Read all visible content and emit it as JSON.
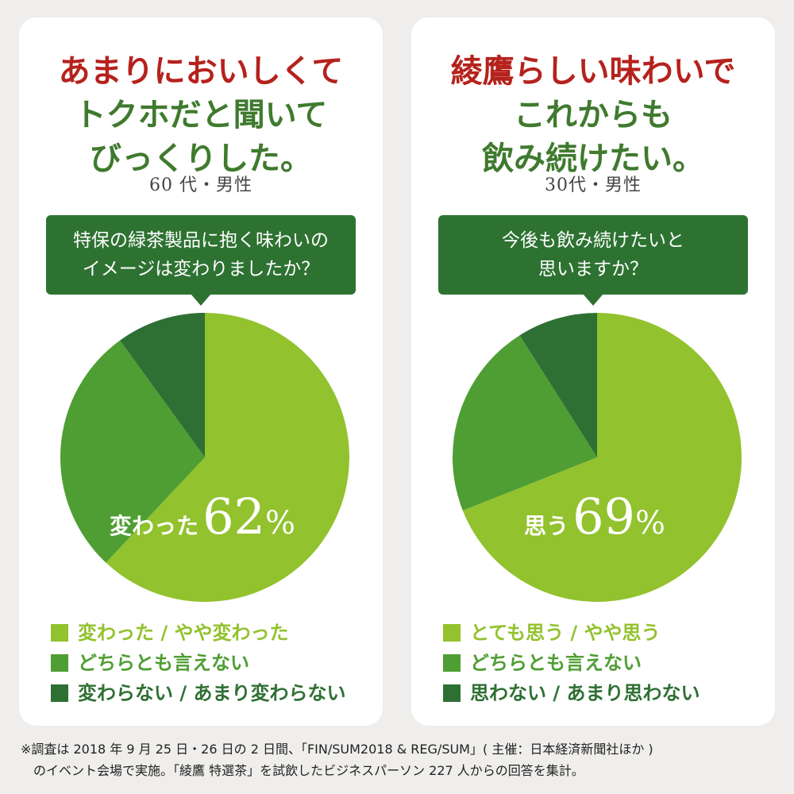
{
  "colors": {
    "light": "#92c22d",
    "mid": "#4f9e33",
    "dark": "#2e7033"
  },
  "cards": [
    {
      "headline_red": "あまりにおいしくて",
      "headline_green_1": "トクホだと聞いて",
      "headline_green_2": "びっくりした。",
      "respondent": "60 代・男性",
      "question_1": "特保の緑茶製品に抱く味わいの",
      "question_2": "イメージは変わりましたか？",
      "highlight_label": "変わった",
      "highlight_value": "62",
      "highlight_unit": "%",
      "legend": [
        "変わった / やや変わった",
        "どちらとも言えない",
        "変わらない / あまり変わらない"
      ]
    },
    {
      "headline_red": "綾鷹らしい味わいで",
      "headline_green_1": "これからも",
      "headline_green_2": "飲み続けたい。",
      "respondent": "30代・男性",
      "question_1": "今後も飲み続けたいと",
      "question_2": "思いますか？",
      "highlight_label": "思う",
      "highlight_value": "69",
      "highlight_unit": "%",
      "legend": [
        "とても思う / やや思う",
        "どちらとも言えない",
        "思わない / あまり思わない"
      ]
    }
  ],
  "chart_data": [
    {
      "type": "pie",
      "title": "特保の緑茶製品に抱く味わいのイメージは変わりましたか？",
      "categories": [
        "変わった / やや変わった",
        "どちらとも言えない",
        "変わらない / あまり変わらない"
      ],
      "values": [
        62,
        28,
        10
      ],
      "legend": "bottom"
    },
    {
      "type": "pie",
      "title": "今後も飲み続けたいと思いますか？",
      "categories": [
        "とても思う / やや思う",
        "どちらとも言えない",
        "思わない / あまり思わない"
      ],
      "values": [
        69,
        22,
        9
      ],
      "legend": "bottom"
    }
  ],
  "footnote_1": "※調査は 2018 年 9 月 25 日・26 日の 2 日間、「FIN/SUM2018 & REG/SUM」( 主催：日本経済新聞社ほか )",
  "footnote_2": "のイベント会場で実施。「綾鷹 特選茶」を試飲したビジネスパーソン 227 人からの回答を集計。"
}
